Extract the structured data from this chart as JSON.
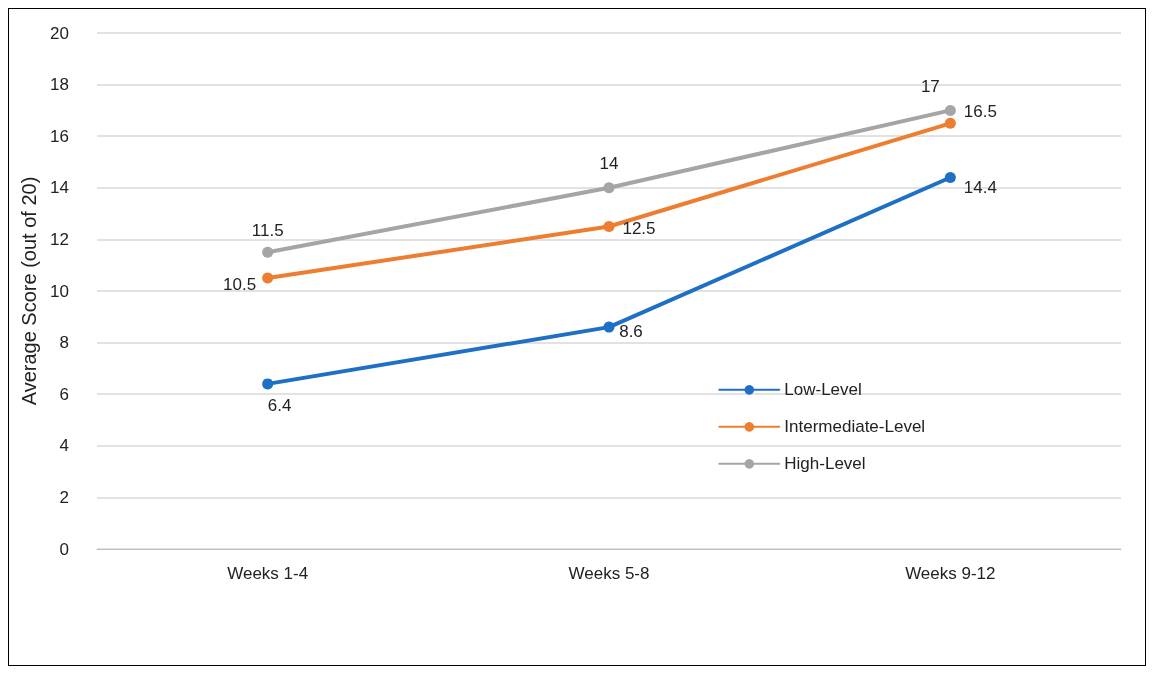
{
  "chart_data": {
    "type": "line",
    "ylabel": "Average Score (out of 20)",
    "categories": [
      "Weeks 1-4",
      "Weeks 5-8",
      "Weeks 9-12"
    ],
    "series": [
      {
        "name": "Low-Level",
        "color": "#1f6fc5",
        "values": [
          6.4,
          8.6,
          14.4
        ]
      },
      {
        "name": "Intermediate-Level",
        "color": "#ed7d31",
        "values": [
          10.5,
          12.5,
          16.5
        ]
      },
      {
        "name": "High-Level",
        "color": "#a5a5a5",
        "values": [
          11.5,
          14,
          17
        ]
      }
    ],
    "ylim": [
      0,
      20
    ],
    "yticks": [
      0,
      2,
      4,
      6,
      8,
      10,
      12,
      14,
      16,
      18,
      20
    ],
    "grid": "y",
    "legend": "right",
    "marker": "circle",
    "line_style": "solid",
    "data_labels": true
  }
}
